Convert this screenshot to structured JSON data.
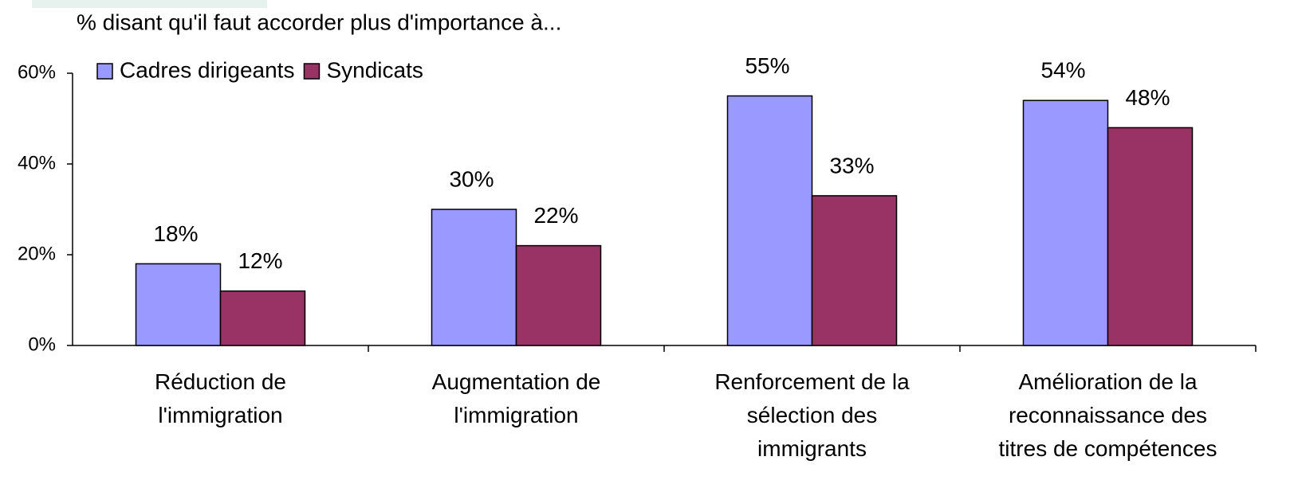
{
  "chart_data": {
    "type": "bar",
    "subtitle": "% disant qu'il faut accorder plus d'importance à...",
    "categories": [
      "Réduction de\nl'immigration",
      "Augmentation de\nl'immigration",
      "Renforcement de la\nsélection des\nimmigrants",
      "Amélioration de la\nreconnaissance des\ntitres de compétences"
    ],
    "series": [
      {
        "name": "Cadres dirigeants",
        "color": "#9999ff",
        "values": [
          18,
          30,
          55,
          54
        ],
        "value_labels": [
          "18%",
          "30%",
          "55%",
          "54%"
        ]
      },
      {
        "name": "Syndicats",
        "color": "#993366",
        "values": [
          12,
          22,
          33,
          48
        ],
        "value_labels": [
          "12%",
          "22%",
          "33%",
          "48%"
        ]
      }
    ],
    "ylim": [
      0,
      60
    ],
    "yticks": [
      {
        "value": 0,
        "label": "0%"
      },
      {
        "value": 20,
        "label": "20%"
      },
      {
        "value": 40,
        "label": "40%"
      },
      {
        "value": 60,
        "label": "60%"
      }
    ],
    "legend": "top-left"
  }
}
